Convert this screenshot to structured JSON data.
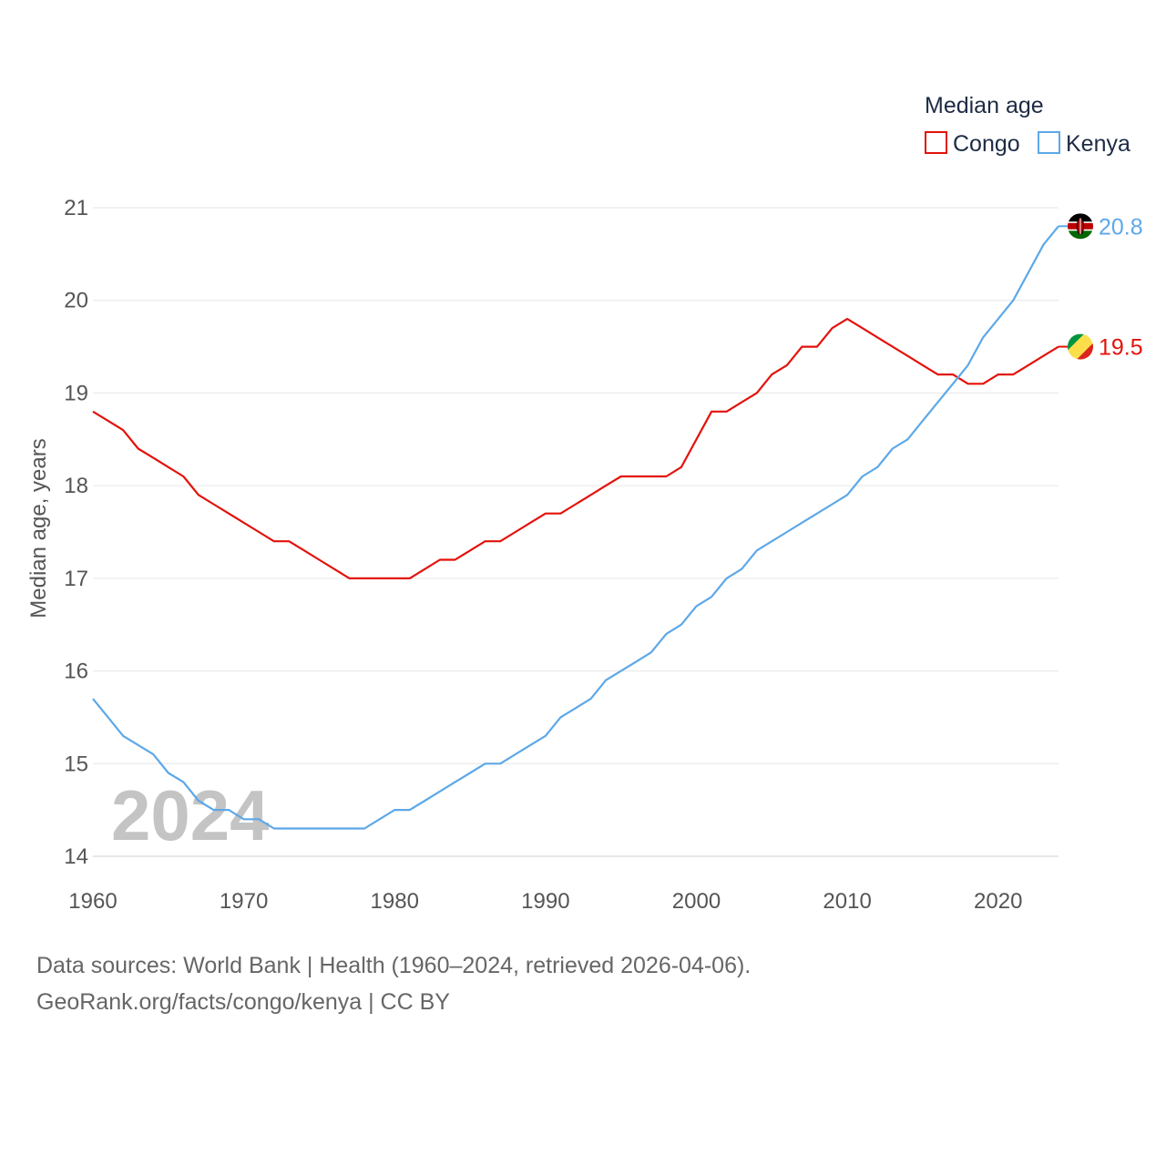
{
  "chart_data": {
    "type": "line",
    "ylabel": "Median age, years",
    "xlim": [
      1960,
      2024
    ],
    "ylim": [
      14,
      21
    ],
    "x_ticks": [
      "1960",
      "1970",
      "1980",
      "1990",
      "2000",
      "2010",
      "2020"
    ],
    "y_ticks": [
      "14",
      "15",
      "16",
      "17",
      "18",
      "19",
      "20",
      "21"
    ],
    "grid": true,
    "legend": {
      "title": "Median age",
      "position": "top-right",
      "entries": [
        "Congo",
        "Kenya"
      ]
    },
    "year_label": "2024",
    "x": [
      1960,
      1961,
      1962,
      1963,
      1964,
      1965,
      1966,
      1967,
      1968,
      1969,
      1970,
      1971,
      1972,
      1973,
      1974,
      1975,
      1976,
      1977,
      1978,
      1979,
      1980,
      1981,
      1982,
      1983,
      1984,
      1985,
      1986,
      1987,
      1988,
      1989,
      1990,
      1991,
      1992,
      1993,
      1994,
      1995,
      1996,
      1997,
      1998,
      1999,
      2000,
      2001,
      2002,
      2003,
      2004,
      2005,
      2006,
      2007,
      2008,
      2009,
      2010,
      2011,
      2012,
      2013,
      2014,
      2015,
      2016,
      2017,
      2018,
      2019,
      2020,
      2021,
      2022,
      2023,
      2024
    ],
    "series": [
      {
        "name": "Congo",
        "color": "#e3120b",
        "end_label": "19.5",
        "flag": "congo-flag",
        "values": [
          18.8,
          18.7,
          18.6,
          18.4,
          18.3,
          18.2,
          18.1,
          17.9,
          17.8,
          17.7,
          17.6,
          17.5,
          17.4,
          17.4,
          17.3,
          17.2,
          17.1,
          17.0,
          17.0,
          17.0,
          17.0,
          17.0,
          17.1,
          17.2,
          17.2,
          17.3,
          17.4,
          17.4,
          17.5,
          17.6,
          17.7,
          17.7,
          17.8,
          17.9,
          18.0,
          18.1,
          18.1,
          18.1,
          18.1,
          18.2,
          18.5,
          18.8,
          18.8,
          18.9,
          19.0,
          19.2,
          19.3,
          19.5,
          19.5,
          19.7,
          19.8,
          19.7,
          19.6,
          19.5,
          19.4,
          19.3,
          19.2,
          19.2,
          19.1,
          19.1,
          19.2,
          19.2,
          19.3,
          19.4,
          19.5
        ]
      },
      {
        "name": "Kenya",
        "color": "#5da8e8",
        "end_label": "20.8",
        "flag": "kenya-flag",
        "values": [
          15.7,
          15.5,
          15.3,
          15.2,
          15.1,
          14.9,
          14.8,
          14.6,
          14.5,
          14.5,
          14.4,
          14.4,
          14.3,
          14.3,
          14.3,
          14.3,
          14.3,
          14.3,
          14.3,
          14.4,
          14.5,
          14.5,
          14.6,
          14.7,
          14.8,
          14.9,
          15.0,
          15.0,
          15.1,
          15.2,
          15.3,
          15.5,
          15.6,
          15.7,
          15.9,
          16.0,
          16.1,
          16.2,
          16.4,
          16.5,
          16.7,
          16.8,
          17.0,
          17.1,
          17.3,
          17.4,
          17.5,
          17.6,
          17.7,
          17.8,
          17.9,
          18.1,
          18.2,
          18.4,
          18.5,
          18.7,
          18.9,
          19.1,
          19.3,
          19.6,
          19.8,
          20.0,
          20.3,
          20.6,
          20.8
        ]
      }
    ]
  },
  "source": {
    "line1": "Data sources: World Bank | Health (1960–2024, retrieved 2026-04-06).",
    "line2": "GeoRank.org/facts/congo/kenya | CC BY"
  }
}
